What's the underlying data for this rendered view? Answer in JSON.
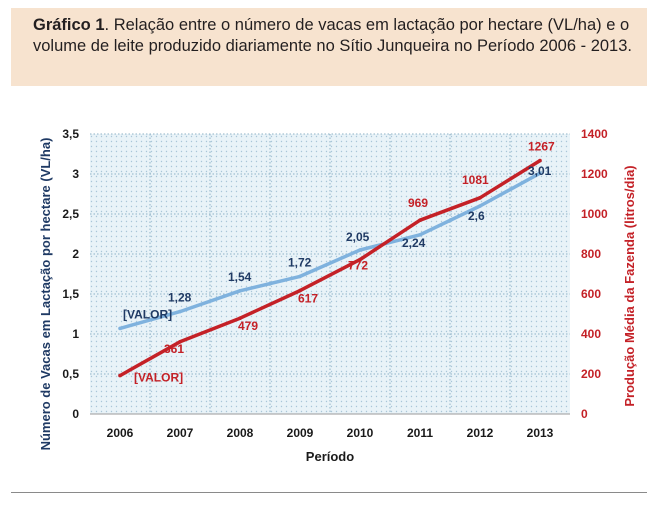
{
  "caption": {
    "bold": "Gráfico 1",
    "text": ". Relação entre o número de vacas em lactação por hectare (VL/ha) e o volume de leite produzido diariamente no Sítio Junqueira no Período 2006 - 2013."
  },
  "chart_data": {
    "type": "line",
    "xlabel": "Período",
    "categories": [
      "2006",
      "2007",
      "2008",
      "2009",
      "2010",
      "2011",
      "2012",
      "2013"
    ],
    "left_axis": {
      "label": "Número de Vacas em Lactação por hectare (VL/ha)",
      "ylim": [
        0,
        3.5
      ],
      "ticks": [
        "0",
        "0,5",
        "1",
        "1,5",
        "2",
        "2,5",
        "3",
        "3,5"
      ],
      "color": "#1f3a64"
    },
    "right_axis": {
      "label": "Produção Média da Fazenda (litros/dia)",
      "ylim": [
        0,
        1400
      ],
      "ticks": [
        "0",
        "200",
        "400",
        "600",
        "800",
        "1000",
        "1200",
        "1400"
      ],
      "color": "#c42127"
    },
    "series": [
      {
        "axis": "left",
        "color": "#7fb2de",
        "values": [
          1.07,
          1.28,
          1.54,
          1.72,
          2.05,
          2.24,
          2.6,
          3.01
        ],
        "labels": [
          "[VALOR]",
          "1,28",
          "1,54",
          "1,72",
          "2,05",
          "2,24",
          "2,6",
          "3,01"
        ]
      },
      {
        "axis": "right",
        "color": "#c42127",
        "values": [
          192,
          361,
          479,
          617,
          772,
          969,
          1081,
          1267
        ],
        "labels": [
          "[VALOR]",
          "361",
          "479",
          "617",
          "772",
          "969",
          "1081",
          "1267"
        ]
      }
    ],
    "grid": "dotted",
    "plot_background": "#e6f1f7"
  }
}
